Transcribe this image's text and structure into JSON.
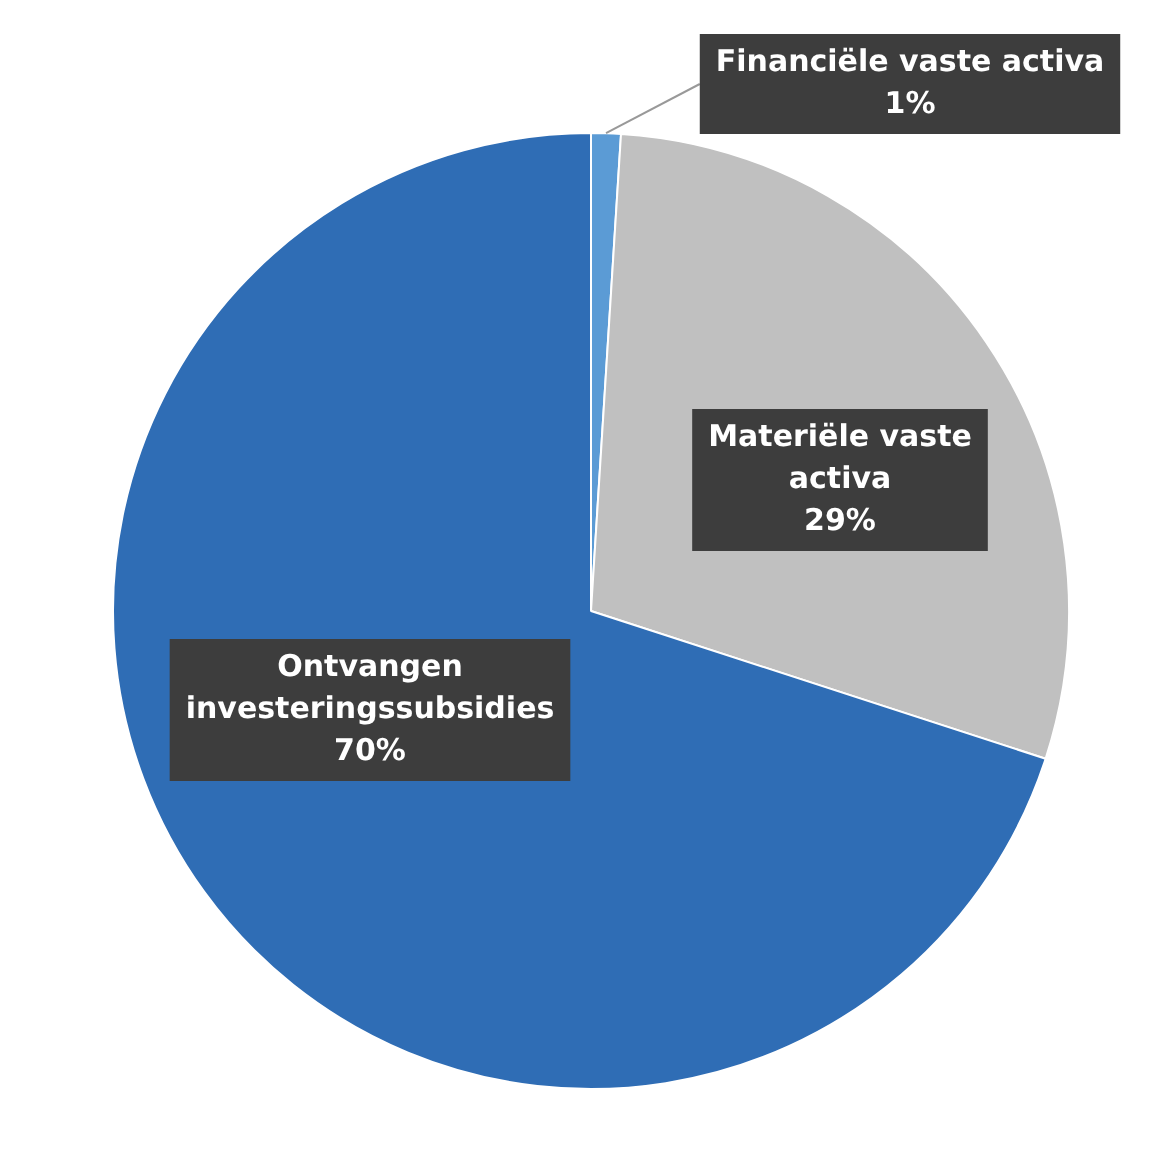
{
  "chart_data": {
    "type": "pie",
    "categories": [
      "Financiële vaste activa",
      "Materiële vaste activa",
      "Ontvangen investeringssubsidies"
    ],
    "values": [
      1,
      29,
      70
    ],
    "colors": [
      "#5b9bd5",
      "#c0c0c0",
      "#2f6db5"
    ],
    "value_labels": [
      "1%",
      "29%",
      "70%"
    ],
    "legend": false
  }
}
